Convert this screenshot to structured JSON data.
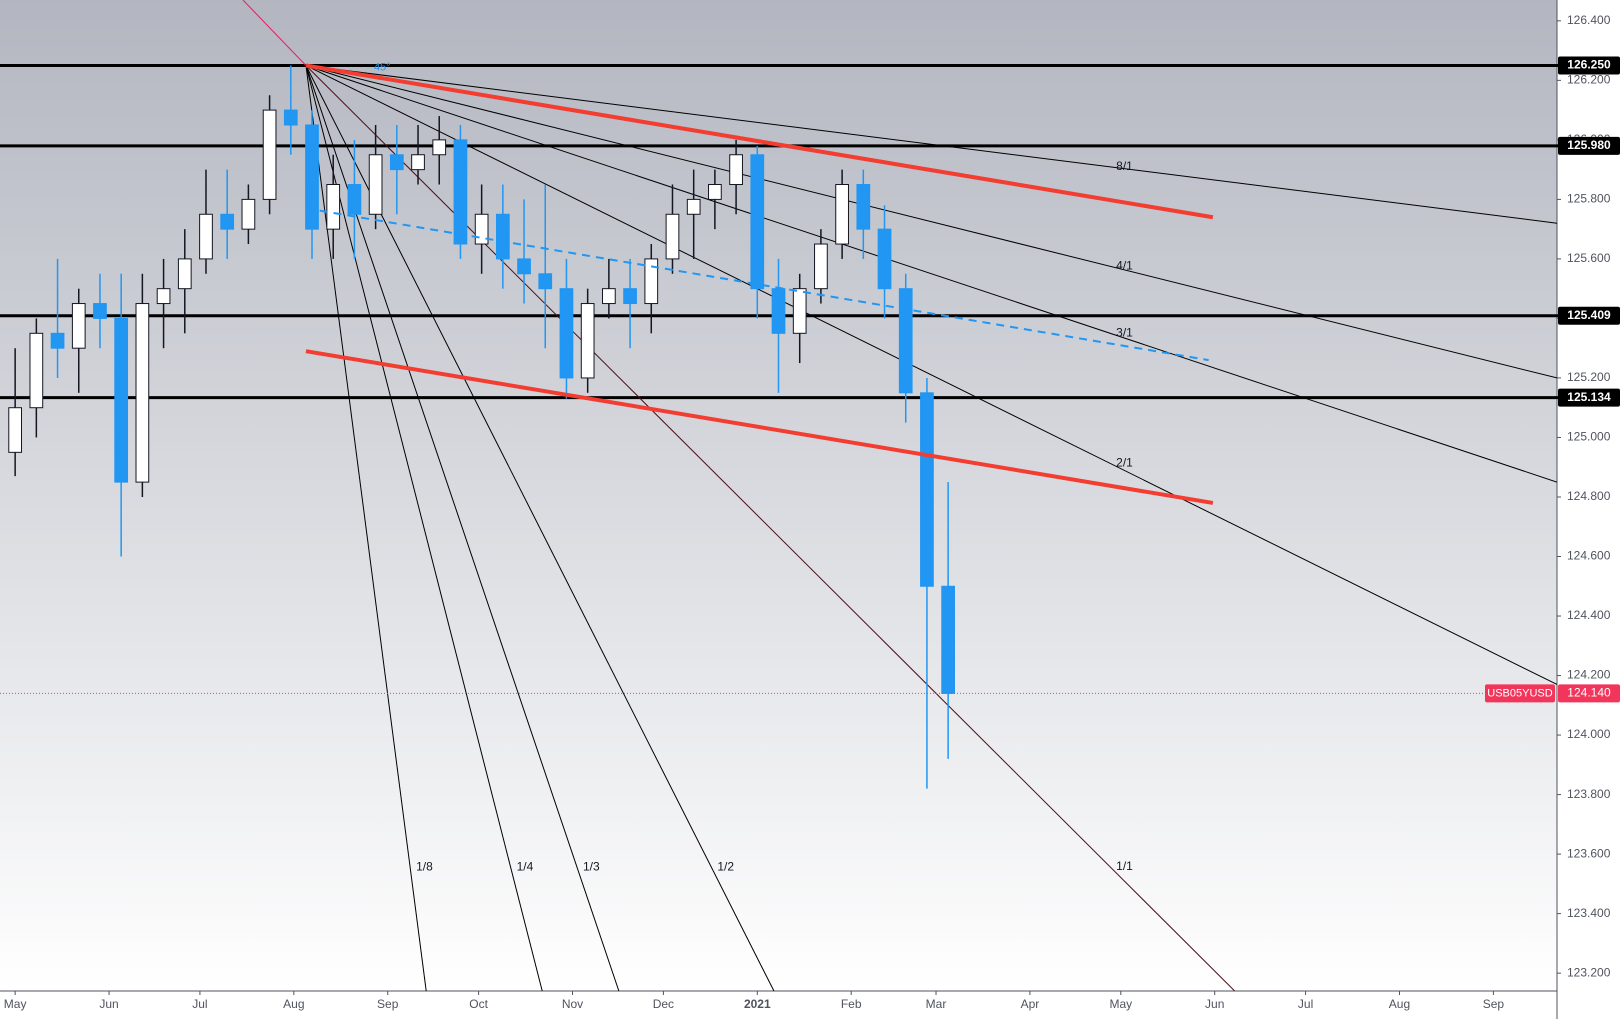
{
  "chart_data": {
    "type": "candlestick",
    "symbol": "USB05YUSD",
    "up_color": "#ffffff",
    "down_color": "#2196f3",
    "xlim": [
      -5,
      509
    ],
    "ylim": [
      123.14,
      126.47
    ],
    "xticks": [
      {
        "value": 0,
        "label": "May"
      },
      {
        "value": 31,
        "label": "Jun"
      },
      {
        "value": 61,
        "label": "Jul"
      },
      {
        "value": 92,
        "label": "Aug"
      },
      {
        "value": 123,
        "label": "Sep"
      },
      {
        "value": 153,
        "label": "Oct"
      },
      {
        "value": 184,
        "label": "Nov"
      },
      {
        "value": 214,
        "label": "Dec"
      },
      {
        "value": 245,
        "label": "2021"
      },
      {
        "value": 276,
        "label": "Feb"
      },
      {
        "value": 304,
        "label": "Mar"
      },
      {
        "value": 335,
        "label": "Apr"
      },
      {
        "value": 365,
        "label": "May"
      },
      {
        "value": 396,
        "label": "Jun"
      },
      {
        "value": 426,
        "label": "Jul"
      },
      {
        "value": 457,
        "label": "Aug"
      },
      {
        "value": 488,
        "label": "Sep"
      }
    ],
    "yticks": [
      {
        "value": 123.2,
        "label": "123.200"
      },
      {
        "value": 123.4,
        "label": "123.400"
      },
      {
        "value": 123.6,
        "label": "123.600"
      },
      {
        "value": 123.8,
        "label": "123.800"
      },
      {
        "value": 124.0,
        "label": "124.000"
      },
      {
        "value": 124.2,
        "label": "124.200"
      },
      {
        "value": 124.4,
        "label": "124.400"
      },
      {
        "value": 124.6,
        "label": "124.600"
      },
      {
        "value": 124.8,
        "label": "124.800"
      },
      {
        "value": 125.0,
        "label": "125.000"
      },
      {
        "value": 125.2,
        "label": "125.200"
      },
      {
        "value": 125.4,
        "label": "125.400"
      },
      {
        "value": 125.6,
        "label": "125.600"
      },
      {
        "value": 125.8,
        "label": "125.800"
      },
      {
        "value": 126.0,
        "label": "126.000"
      },
      {
        "value": 126.2,
        "label": "126.200"
      },
      {
        "value": 126.4,
        "label": "126.400"
      }
    ],
    "x": [
      0,
      7,
      14,
      21,
      28,
      35,
      42,
      49,
      56,
      63,
      70,
      77,
      84,
      91,
      98,
      105,
      112,
      119,
      126,
      133,
      140,
      147,
      154,
      161,
      168,
      175,
      182,
      189,
      196,
      203,
      210,
      217,
      224,
      231,
      238,
      245,
      252,
      259,
      266,
      273,
      280,
      287,
      294,
      301,
      308
    ],
    "open": [
      124.95,
      125.1,
      125.35,
      125.3,
      125.45,
      125.4,
      124.85,
      125.45,
      125.5,
      125.6,
      125.75,
      125.7,
      125.8,
      126.1,
      126.05,
      125.7,
      125.85,
      125.75,
      125.95,
      125.9,
      125.95,
      126.0,
      125.65,
      125.75,
      125.6,
      125.55,
      125.5,
      125.2,
      125.45,
      125.5,
      125.45,
      125.6,
      125.75,
      125.8,
      125.85,
      125.95,
      125.5,
      125.35,
      125.5,
      125.65,
      125.85,
      125.7,
      125.5,
      125.15,
      124.5
    ],
    "high": [
      125.3,
      125.4,
      125.6,
      125.5,
      125.55,
      125.55,
      125.55,
      125.6,
      125.7,
      125.9,
      125.9,
      125.85,
      126.15,
      126.25,
      126.1,
      125.95,
      126.0,
      126.05,
      126.05,
      126.05,
      126.08,
      126.05,
      125.85,
      125.85,
      125.8,
      125.85,
      125.6,
      125.5,
      125.6,
      125.6,
      125.65,
      125.85,
      125.9,
      125.9,
      126.0,
      125.98,
      125.6,
      125.55,
      125.7,
      125.9,
      125.9,
      125.78,
      125.55,
      125.2,
      124.85
    ],
    "low": [
      124.87,
      125.0,
      125.2,
      125.15,
      125.3,
      124.6,
      124.8,
      125.3,
      125.35,
      125.55,
      125.6,
      125.65,
      125.75,
      125.95,
      125.6,
      125.6,
      125.6,
      125.7,
      125.75,
      125.85,
      125.85,
      125.6,
      125.55,
      125.5,
      125.45,
      125.3,
      125.13,
      125.15,
      125.4,
      125.3,
      125.35,
      125.55,
      125.6,
      125.7,
      125.75,
      125.4,
      125.15,
      125.25,
      125.45,
      125.6,
      125.6,
      125.4,
      125.05,
      123.82,
      123.92
    ],
    "close": [
      125.1,
      125.35,
      125.3,
      125.45,
      125.4,
      124.85,
      125.45,
      125.5,
      125.6,
      125.75,
      125.7,
      125.8,
      126.1,
      126.05,
      125.7,
      125.85,
      125.75,
      125.95,
      125.9,
      125.95,
      126.0,
      125.65,
      125.75,
      125.6,
      125.55,
      125.5,
      125.2,
      125.45,
      125.5,
      125.45,
      125.6,
      125.75,
      125.8,
      125.85,
      125.95,
      125.5,
      125.35,
      125.5,
      125.65,
      125.85,
      125.7,
      125.5,
      125.15,
      124.5,
      124.14
    ],
    "levels": [
      {
        "value": 126.25,
        "label": "126.250"
      },
      {
        "value": 125.98,
        "label": "125.980"
      },
      {
        "value": 125.409,
        "label": "125.409"
      },
      {
        "value": 125.134,
        "label": "125.134"
      }
    ],
    "last_price": {
      "value": 124.14,
      "label": "124.140"
    },
    "fan": {
      "anchor": [
        96,
        126.25
      ],
      "angle_label": "45°",
      "angle_start": [
        75.2,
        126.47
      ],
      "lines": [
        {
          "label": "8/1",
          "end": [
            509,
            125.72
          ]
        },
        {
          "label": "4/1",
          "end": [
            509,
            125.2
          ]
        },
        {
          "label": "3/1",
          "end": [
            509,
            124.85
          ]
        },
        {
          "label": "2/1",
          "end": [
            509,
            124.17
          ]
        },
        {
          "label": "1/1",
          "end": [
            402.6,
            123.14
          ]
        },
        {
          "label": "1/2",
          "end": [
            250.5,
            123.14
          ]
        },
        {
          "label": "1/3",
          "end": [
            199.3,
            123.14
          ]
        },
        {
          "label": "1/4",
          "end": [
            174.0,
            123.14
          ]
        },
        {
          "label": "1/8",
          "end": [
            135.7,
            123.14
          ]
        }
      ]
    },
    "trendlines": [
      {
        "color": "#f23d30",
        "start": [
          96,
          126.25
        ],
        "end": [
          395.4,
          125.74
        ]
      },
      {
        "color": "#f23d30",
        "start": [
          96,
          125.29
        ],
        "end": [
          395.4,
          124.78
        ]
      },
      {
        "color": "#2196f3",
        "dashed": true,
        "start": [
          96,
          125.77
        ],
        "end": [
          394,
          125.26
        ]
      }
    ]
  }
}
